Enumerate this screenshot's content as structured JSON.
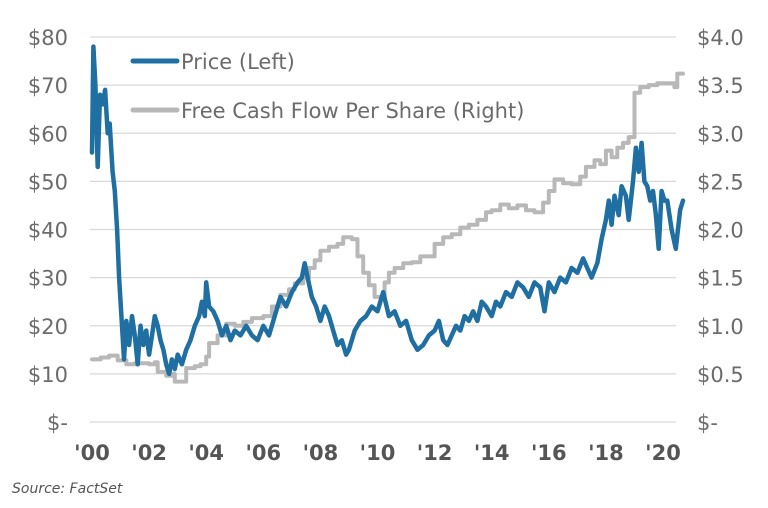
{
  "chart_data": {
    "type": "line",
    "title": "",
    "source": "Source: FactSet",
    "xlabel": "",
    "x_ticks": [
      "'00",
      "'02",
      "'04",
      "'06",
      "'08",
      "'10",
      "'12",
      "'14",
      "'16",
      "'18",
      "'20"
    ],
    "x_tick_years": [
      2000,
      2002,
      2004,
      2006,
      2008,
      2010,
      2012,
      2014,
      2016,
      2018,
      2020
    ],
    "xlim": [
      2000,
      2020.75
    ],
    "left_axis": {
      "label": "Price",
      "ylim": [
        0,
        80
      ],
      "ticks": [
        "$-",
        "$10",
        "$20",
        "$30",
        "$40",
        "$50",
        "$60",
        "$70",
        "$80"
      ]
    },
    "right_axis": {
      "label": "Free Cash Flow Per Share",
      "ylim": [
        0,
        4.0
      ],
      "ticks": [
        "$-",
        "$0.5",
        "$1.0",
        "$1.5",
        "$2.0",
        "$2.5",
        "$3.0",
        "$3.5",
        "$4.0"
      ]
    },
    "grid": true,
    "legend_position": "top-left",
    "series": [
      {
        "name": "Price (Left)",
        "axis": "left",
        "color": "#1f6fa3",
        "points": [
          [
            2000.0,
            56
          ],
          [
            2000.05,
            78
          ],
          [
            2000.12,
            70
          ],
          [
            2000.2,
            53
          ],
          [
            2000.28,
            68
          ],
          [
            2000.38,
            66
          ],
          [
            2000.46,
            69
          ],
          [
            2000.55,
            60
          ],
          [
            2000.62,
            62
          ],
          [
            2000.72,
            52
          ],
          [
            2000.8,
            48
          ],
          [
            2000.88,
            40
          ],
          [
            2000.95,
            30
          ],
          [
            2001.05,
            20
          ],
          [
            2001.12,
            13
          ],
          [
            2001.2,
            21
          ],
          [
            2001.3,
            16
          ],
          [
            2001.4,
            22
          ],
          [
            2001.5,
            18
          ],
          [
            2001.6,
            12
          ],
          [
            2001.7,
            20
          ],
          [
            2001.8,
            16
          ],
          [
            2001.9,
            19
          ],
          [
            2002.0,
            14
          ],
          [
            2002.1,
            18
          ],
          [
            2002.2,
            22
          ],
          [
            2002.3,
            20
          ],
          [
            2002.4,
            17
          ],
          [
            2002.5,
            15
          ],
          [
            2002.6,
            12
          ],
          [
            2002.7,
            10
          ],
          [
            2002.8,
            13
          ],
          [
            2002.9,
            11
          ],
          [
            2003.0,
            14
          ],
          [
            2003.15,
            12
          ],
          [
            2003.3,
            15
          ],
          [
            2003.45,
            17
          ],
          [
            2003.6,
            20
          ],
          [
            2003.75,
            22
          ],
          [
            2003.85,
            25
          ],
          [
            2003.95,
            22
          ],
          [
            2004.0,
            29
          ],
          [
            2004.1,
            24
          ],
          [
            2004.25,
            23
          ],
          [
            2004.4,
            21
          ],
          [
            2004.55,
            18
          ],
          [
            2004.7,
            20
          ],
          [
            2004.85,
            17
          ],
          [
            2005.0,
            19
          ],
          [
            2005.2,
            18
          ],
          [
            2005.4,
            20
          ],
          [
            2005.6,
            18
          ],
          [
            2005.8,
            17
          ],
          [
            2006.0,
            20
          ],
          [
            2006.2,
            18
          ],
          [
            2006.4,
            22
          ],
          [
            2006.6,
            26
          ],
          [
            2006.8,
            24
          ],
          [
            2007.0,
            27
          ],
          [
            2007.2,
            29
          ],
          [
            2007.35,
            30
          ],
          [
            2007.45,
            33
          ],
          [
            2007.55,
            30
          ],
          [
            2007.7,
            26
          ],
          [
            2007.85,
            24
          ],
          [
            2008.0,
            21
          ],
          [
            2008.15,
            24
          ],
          [
            2008.3,
            22
          ],
          [
            2008.45,
            19
          ],
          [
            2008.6,
            16
          ],
          [
            2008.75,
            17
          ],
          [
            2008.9,
            14
          ],
          [
            2009.0,
            15
          ],
          [
            2009.2,
            19
          ],
          [
            2009.4,
            21
          ],
          [
            2009.6,
            22
          ],
          [
            2009.8,
            24
          ],
          [
            2010.0,
            23
          ],
          [
            2010.2,
            27
          ],
          [
            2010.4,
            22
          ],
          [
            2010.6,
            23
          ],
          [
            2010.8,
            20
          ],
          [
            2011.0,
            21
          ],
          [
            2011.2,
            17
          ],
          [
            2011.4,
            15
          ],
          [
            2011.6,
            16
          ],
          [
            2011.8,
            18
          ],
          [
            2012.0,
            19
          ],
          [
            2012.15,
            21
          ],
          [
            2012.3,
            17
          ],
          [
            2012.45,
            16
          ],
          [
            2012.6,
            18
          ],
          [
            2012.75,
            20
          ],
          [
            2012.9,
            19
          ],
          [
            2013.05,
            22
          ],
          [
            2013.2,
            21
          ],
          [
            2013.35,
            23
          ],
          [
            2013.5,
            21
          ],
          [
            2013.65,
            25
          ],
          [
            2013.8,
            24
          ],
          [
            2014.0,
            22
          ],
          [
            2014.15,
            25
          ],
          [
            2014.3,
            24
          ],
          [
            2014.5,
            27
          ],
          [
            2014.7,
            26
          ],
          [
            2014.9,
            29
          ],
          [
            2015.1,
            28
          ],
          [
            2015.3,
            26
          ],
          [
            2015.5,
            29
          ],
          [
            2015.7,
            28
          ],
          [
            2015.85,
            23
          ],
          [
            2016.0,
            29
          ],
          [
            2016.2,
            27
          ],
          [
            2016.4,
            30
          ],
          [
            2016.6,
            29
          ],
          [
            2016.8,
            32
          ],
          [
            2017.0,
            31
          ],
          [
            2017.2,
            34
          ],
          [
            2017.35,
            32
          ],
          [
            2017.5,
            30
          ],
          [
            2017.7,
            33
          ],
          [
            2017.85,
            38
          ],
          [
            2018.0,
            42
          ],
          [
            2018.1,
            46
          ],
          [
            2018.2,
            41
          ],
          [
            2018.3,
            47
          ],
          [
            2018.45,
            43
          ],
          [
            2018.55,
            49
          ],
          [
            2018.7,
            47
          ],
          [
            2018.8,
            42
          ],
          [
            2018.95,
            50
          ],
          [
            2019.05,
            57
          ],
          [
            2019.15,
            52
          ],
          [
            2019.25,
            58
          ],
          [
            2019.35,
            50
          ],
          [
            2019.45,
            49
          ],
          [
            2019.55,
            46
          ],
          [
            2019.65,
            48
          ],
          [
            2019.75,
            43
          ],
          [
            2019.85,
            36
          ],
          [
            2019.95,
            48
          ],
          [
            2020.05,
            46
          ],
          [
            2020.15,
            46
          ],
          [
            2020.3,
            40
          ],
          [
            2020.45,
            36
          ],
          [
            2020.6,
            44
          ],
          [
            2020.7,
            46
          ]
        ]
      },
      {
        "name": "Free Cash Flow Per Share (Right)",
        "axis": "right",
        "color": "#b8b8b8",
        "points": [
          [
            2000.0,
            0.65
          ],
          [
            2000.3,
            0.67
          ],
          [
            2000.6,
            0.69
          ],
          [
            2000.9,
            0.64
          ],
          [
            2001.2,
            0.6
          ],
          [
            2001.5,
            0.61
          ],
          [
            2002.0,
            0.6
          ],
          [
            2002.2,
            0.62
          ],
          [
            2002.3,
            0.52
          ],
          [
            2002.6,
            0.48
          ],
          [
            2002.8,
            0.5
          ],
          [
            2002.9,
            0.42
          ],
          [
            2003.2,
            0.42
          ],
          [
            2003.3,
            0.56
          ],
          [
            2003.6,
            0.58
          ],
          [
            2003.8,
            0.6
          ],
          [
            2004.0,
            0.68
          ],
          [
            2004.1,
            0.82
          ],
          [
            2004.4,
            0.9
          ],
          [
            2004.7,
            1.02
          ],
          [
            2005.0,
            1.0
          ],
          [
            2005.3,
            1.04
          ],
          [
            2005.6,
            1.08
          ],
          [
            2006.0,
            1.1
          ],
          [
            2006.3,
            1.2
          ],
          [
            2006.6,
            1.32
          ],
          [
            2006.9,
            1.38
          ],
          [
            2007.1,
            1.44
          ],
          [
            2007.4,
            1.5
          ],
          [
            2007.6,
            1.6
          ],
          [
            2007.8,
            1.68
          ],
          [
            2008.0,
            1.78
          ],
          [
            2008.3,
            1.82
          ],
          [
            2008.6,
            1.85
          ],
          [
            2008.8,
            1.92
          ],
          [
            2009.1,
            1.9
          ],
          [
            2009.3,
            1.72
          ],
          [
            2009.5,
            1.55
          ],
          [
            2009.7,
            1.42
          ],
          [
            2009.9,
            1.3
          ],
          [
            2010.1,
            1.3
          ],
          [
            2010.25,
            1.45
          ],
          [
            2010.4,
            1.55
          ],
          [
            2010.6,
            1.6
          ],
          [
            2010.9,
            1.65
          ],
          [
            2011.2,
            1.66
          ],
          [
            2011.5,
            1.72
          ],
          [
            2011.8,
            1.72
          ],
          [
            2012.0,
            1.85
          ],
          [
            2012.3,
            1.92
          ],
          [
            2012.6,
            1.95
          ],
          [
            2012.9,
            2.02
          ],
          [
            2013.2,
            2.05
          ],
          [
            2013.5,
            2.1
          ],
          [
            2013.8,
            2.18
          ],
          [
            2014.0,
            2.2
          ],
          [
            2014.3,
            2.26
          ],
          [
            2014.6,
            2.22
          ],
          [
            2014.9,
            2.25
          ],
          [
            2015.2,
            2.2
          ],
          [
            2015.5,
            2.18
          ],
          [
            2015.8,
            2.28
          ],
          [
            2016.0,
            2.4
          ],
          [
            2016.2,
            2.52
          ],
          [
            2016.5,
            2.48
          ],
          [
            2016.8,
            2.47
          ],
          [
            2017.1,
            2.55
          ],
          [
            2017.3,
            2.65
          ],
          [
            2017.6,
            2.72
          ],
          [
            2017.8,
            2.68
          ],
          [
            2018.0,
            2.82
          ],
          [
            2018.2,
            2.75
          ],
          [
            2018.4,
            2.85
          ],
          [
            2018.6,
            2.9
          ],
          [
            2018.8,
            2.96
          ],
          [
            2018.95,
            2.96
          ],
          [
            2019.0,
            3.42
          ],
          [
            2019.2,
            3.48
          ],
          [
            2019.5,
            3.5
          ],
          [
            2019.8,
            3.52
          ],
          [
            2020.1,
            3.52
          ],
          [
            2020.4,
            3.48
          ],
          [
            2020.5,
            3.62
          ],
          [
            2020.7,
            3.62
          ]
        ]
      }
    ]
  }
}
